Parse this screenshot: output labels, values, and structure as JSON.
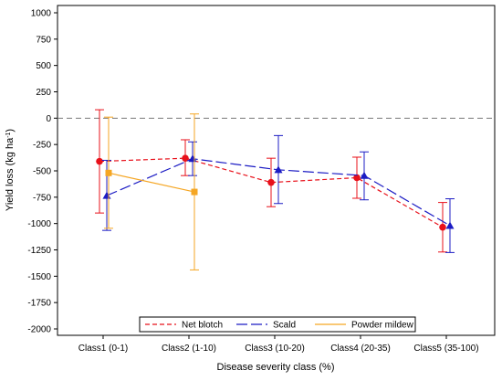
{
  "chart_data": {
    "type": "line",
    "title": "",
    "xlabel": "Disease severity class (%)",
    "ylabel_main": "Yield loss (kg ha",
    "ylabel_sup": "-1",
    "ylabel_close": ")",
    "ylim": [
      -2000,
      1000
    ],
    "yticks": [
      1000,
      750,
      500,
      250,
      0,
      -250,
      -500,
      -750,
      -1000,
      -1250,
      -1500,
      -1750,
      -2000
    ],
    "categories": [
      "Class1 (0-1)",
      "Class2 (1-10)",
      "Class3 (10-20)",
      "Class4 (20-35)",
      "Class5 (35-100)"
    ],
    "reference_line": 0,
    "grid": false,
    "legend_position": "bottom-center",
    "series": [
      {
        "name": "Net blotch",
        "color": "#e8101a",
        "dash": "dashed",
        "marker": "circle",
        "values": [
          -410,
          -380,
          -610,
          -565,
          -1035
        ],
        "lower": [
          -900,
          -545,
          -840,
          -760,
          -1270
        ],
        "upper": [
          80,
          -205,
          -380,
          -370,
          -800
        ]
      },
      {
        "name": "Scald",
        "color": "#1c1cc4",
        "dash": "long-dash",
        "marker": "triangle",
        "values": [
          -735,
          -385,
          -490,
          -545,
          -1020
        ],
        "lower": [
          -1065,
          -545,
          -810,
          -775,
          -1275
        ],
        "upper": [
          -400,
          -225,
          -165,
          -320,
          -765
        ]
      },
      {
        "name": "Powder mildew",
        "color": "#f5a623",
        "dash": "solid",
        "marker": "square",
        "values": [
          -520,
          -700,
          null,
          null,
          null
        ],
        "lower": [
          -1045,
          -1440,
          null,
          null,
          null
        ],
        "upper": [
          10,
          40,
          null,
          null,
          null
        ]
      }
    ]
  }
}
